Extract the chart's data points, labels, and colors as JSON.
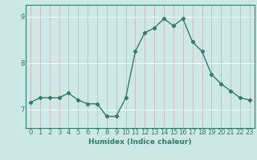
{
  "x": [
    0,
    1,
    2,
    3,
    4,
    5,
    6,
    7,
    8,
    9,
    10,
    11,
    12,
    13,
    14,
    15,
    16,
    17,
    18,
    19,
    20,
    21,
    22,
    23
  ],
  "y": [
    7.15,
    7.25,
    7.25,
    7.25,
    7.35,
    7.2,
    7.12,
    7.12,
    6.85,
    6.85,
    7.25,
    8.25,
    8.65,
    8.75,
    8.95,
    8.8,
    8.95,
    8.45,
    8.25,
    7.75,
    7.55,
    7.4,
    7.25,
    7.2
  ],
  "line_color": "#2e7d6e",
  "marker": "D",
  "markersize": 2.2,
  "linewidth": 1.0,
  "bg_color": "#cce8e4",
  "plot_bg_color": "#cde8e5",
  "vgrid_color": "#c8b8c0",
  "hgrid_color": "#ffffff",
  "xlabel": "Humidex (Indice chaleur)",
  "xlim": [
    -0.5,
    23.5
  ],
  "ylim": [
    6.6,
    9.25
  ],
  "yticks": [
    7,
    8,
    9
  ],
  "xticks": [
    0,
    1,
    2,
    3,
    4,
    5,
    6,
    7,
    8,
    9,
    10,
    11,
    12,
    13,
    14,
    15,
    16,
    17,
    18,
    19,
    20,
    21,
    22,
    23
  ],
  "xlabel_fontsize": 6.5,
  "tick_fontsize": 6.0,
  "axis_color": "#2e7d6e",
  "spine_color": "#2e7d6e",
  "fig_width": 3.2,
  "fig_height": 2.0
}
